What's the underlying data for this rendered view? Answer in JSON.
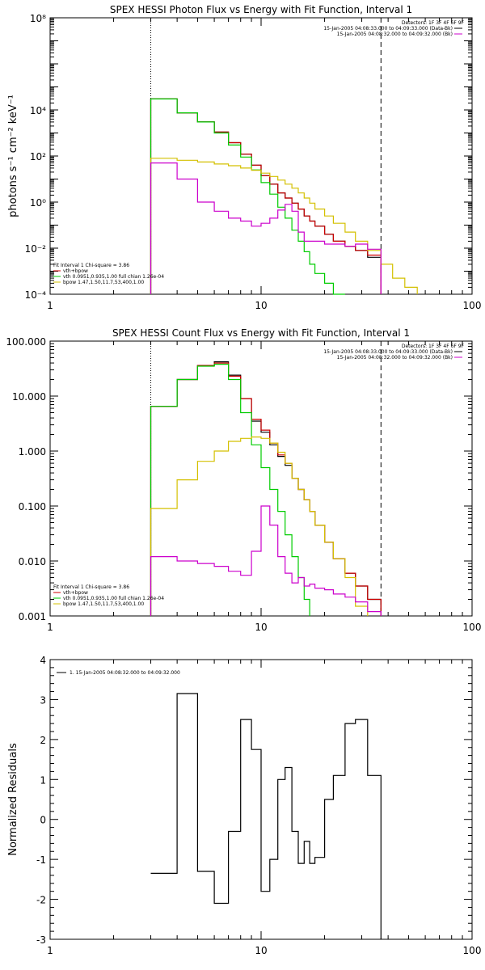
{
  "colors": {
    "data": "#000000",
    "total": "#cc0000",
    "thermal": "#00cc00",
    "powerlaw": "#d4c000",
    "background": "#cc00cc"
  },
  "chart_data": [
    {
      "type": "line",
      "title": "SPEX HESSI Photon Flux vs Energy with Fit Function, Interval 1",
      "xlabel": "",
      "ylabel": "photons s⁻¹ cm⁻² keV⁻¹",
      "xscale": "log",
      "yscale": "log",
      "xlim": [
        1,
        100
      ],
      "ylim": [
        0.0001,
        100000000
      ],
      "xticks": [
        {
          "v": 1,
          "label": "1"
        },
        {
          "v": 10,
          "label": "10"
        },
        {
          "v": 100,
          "label": "100"
        }
      ],
      "yticks": [
        {
          "v": 0.0001,
          "label": "10⁻⁴"
        },
        {
          "v": 0.01,
          "label": "10⁻²"
        },
        {
          "v": 1,
          "label": "10⁰"
        },
        {
          "v": 100,
          "label": "10²"
        },
        {
          "v": 10000,
          "label": "10⁴"
        },
        {
          "v": 100000000,
          "label": "10⁸"
        }
      ],
      "vlines": [
        {
          "x": 3,
          "style": "dotted"
        },
        {
          "x": 37,
          "style": "dashed"
        }
      ],
      "info_lines": [
        "Detectors: 1F 3F 4F 6F 9F",
        "15-Jan-2005 04:08:33.000 to 04:09:33.000 (Data-Bk)",
        "15-Jan-2005 04:08:32.000 to 04:09:32.000 (Bk)"
      ],
      "fit_lines": [
        "Fit Interval 1    Chi-square = 3.86",
        "vth+bpow",
        "vth 0.0951,0.935,1.00   full chian 1.26e-04",
        "bpow 1.47,1.50,11.7,53,400,1.00"
      ],
      "bin_edges": [
        3,
        4,
        5,
        6,
        7,
        8,
        9,
        10,
        11,
        12,
        13,
        14,
        15,
        16,
        17,
        18,
        20,
        22,
        25,
        28,
        32,
        37,
        42,
        48,
        55
      ],
      "series": [
        {
          "key": "data",
          "values": [
            30000,
            7500,
            3000,
            1100,
            380,
            120,
            40,
            14,
            6,
            2.5,
            1.5,
            0.9,
            0.5,
            0.25,
            0.15,
            0.09,
            0.04,
            0.02,
            0.012,
            0.008,
            0.004,
            null,
            null,
            null
          ]
        },
        {
          "key": "total",
          "values": [
            30000,
            7500,
            3000,
            1100,
            380,
            120,
            40,
            14,
            6,
            2.5,
            1.5,
            0.9,
            0.5,
            0.25,
            0.15,
            0.09,
            0.04,
            0.02,
            0.012,
            0.008,
            0.005,
            null,
            null,
            null
          ]
        },
        {
          "key": "thermal",
          "values": [
            30000,
            7500,
            3000,
            1000,
            300,
            90,
            25,
            7,
            2.2,
            0.6,
            0.2,
            0.06,
            0.02,
            0.007,
            0.002,
            0.0008,
            0.0003,
            0.0001,
            null,
            null,
            null,
            null,
            null,
            null
          ]
        },
        {
          "key": "powerlaw",
          "values": [
            80,
            65,
            55,
            45,
            38,
            30,
            24,
            18,
            13,
            9,
            6,
            4,
            2.5,
            1.5,
            0.9,
            0.5,
            0.25,
            0.12,
            0.05,
            0.02,
            0.008,
            0.002,
            0.0005,
            0.0002
          ]
        },
        {
          "key": "background",
          "values": [
            50,
            10,
            1,
            0.4,
            0.2,
            0.15,
            0.09,
            0.12,
            0.2,
            0.45,
            0.8,
            0.4,
            0.05,
            0.02,
            0.02,
            0.02,
            0.015,
            0.015,
            0.012,
            0.015,
            0.009,
            null,
            null,
            null
          ]
        }
      ]
    },
    {
      "type": "line",
      "title": "SPEX HESSI Count Flux vs Energy with Fit Function, Interval 1",
      "xlabel": "",
      "ylabel": "",
      "xscale": "log",
      "yscale": "log",
      "xlim": [
        1,
        100
      ],
      "ylim": [
        0.001,
        100
      ],
      "xticks": [
        {
          "v": 1,
          "label": "1"
        },
        {
          "v": 10,
          "label": "10"
        },
        {
          "v": 100,
          "label": "100"
        }
      ],
      "yticks": [
        {
          "v": 0.001,
          "label": "0.001"
        },
        {
          "v": 0.01,
          "label": "0.010"
        },
        {
          "v": 0.1,
          "label": "0.100"
        },
        {
          "v": 1,
          "label": "1.000"
        },
        {
          "v": 10,
          "label": "10.000"
        },
        {
          "v": 100,
          "label": "100.000"
        }
      ],
      "vlines": [
        {
          "x": 3,
          "style": "dotted"
        },
        {
          "x": 37,
          "style": "dashed"
        }
      ],
      "info_lines": [
        "Detectors: 1F 3F 4F 6F 9F",
        "15-Jan-2005 04:08:33.000 to 04:09:33.000 (Data-Bk)",
        "15-Jan-2005 04:08:32.000 to 04:09:32.000 (Bk)"
      ],
      "fit_lines": [
        "Fit Interval 1    Chi-square = 3.86",
        "vth+bpow",
        "vth 0.0951,0.935,1.00   full chian 1.26e-04",
        "bpow 1.47,1.50,11.7,53,400,1.00"
      ],
      "bin_edges": [
        3,
        4,
        5,
        6,
        7,
        8,
        9,
        10,
        11,
        12,
        13,
        14,
        15,
        16,
        17,
        18,
        20,
        22,
        25,
        28,
        32,
        37
      ],
      "series": [
        {
          "key": "data",
          "values": [
            6.5,
            20,
            36,
            42,
            24,
            9,
            3.5,
            2.2,
            1.3,
            0.8,
            0.55,
            0.32,
            0.2,
            0.13,
            0.08,
            0.045,
            0.022,
            0.011,
            0.006,
            0.0035,
            0.002
          ]
        },
        {
          "key": "total",
          "values": [
            6.5,
            20,
            36,
            40,
            23,
            9,
            3.8,
            2.4,
            1.4,
            0.85,
            0.6,
            0.32,
            0.2,
            0.13,
            0.08,
            0.045,
            0.022,
            0.011,
            0.006,
            0.0035,
            0.002
          ]
        },
        {
          "key": "thermal",
          "values": [
            6.5,
            20,
            35,
            38,
            20,
            5,
            1.3,
            0.5,
            0.2,
            0.08,
            0.03,
            0.012,
            0.005,
            0.002,
            null,
            null,
            null,
            null,
            null,
            null,
            null
          ]
        },
        {
          "key": "powerlaw",
          "values": [
            0.09,
            0.3,
            0.65,
            1.0,
            1.5,
            1.7,
            1.8,
            1.7,
            1.4,
            0.95,
            0.6,
            0.32,
            0.2,
            0.13,
            0.08,
            0.045,
            0.022,
            0.011,
            0.005,
            0.0015,
            null
          ]
        },
        {
          "key": "background",
          "values": [
            0.012,
            0.01,
            0.009,
            0.008,
            0.0065,
            0.0055,
            0.015,
            0.1,
            0.045,
            0.012,
            0.006,
            0.004,
            0.005,
            0.0035,
            0.0038,
            0.0032,
            0.003,
            0.0025,
            0.0022,
            0.0018,
            0.0012
          ]
        }
      ]
    },
    {
      "type": "line",
      "title": "",
      "xlabel": "",
      "ylabel": "Normalized Residuals",
      "xscale": "log",
      "yscale": "linear",
      "xlim": [
        1,
        100
      ],
      "ylim": [
        -3,
        4
      ],
      "xticks": [
        {
          "v": 1,
          "label": "1"
        },
        {
          "v": 10,
          "label": "10"
        },
        {
          "v": 100,
          "label": "100"
        }
      ],
      "yticks": [
        {
          "v": -3,
          "label": "-3"
        },
        {
          "v": -2,
          "label": "-2"
        },
        {
          "v": -1,
          "label": "-1"
        },
        {
          "v": 0,
          "label": "0"
        },
        {
          "v": 1,
          "label": "1"
        },
        {
          "v": 2,
          "label": "2"
        },
        {
          "v": 3,
          "label": "3"
        },
        {
          "v": 4,
          "label": "4"
        }
      ],
      "legend": "1. 15-Jan-2005 04:08:32.000 to 04:09:32.000",
      "bin_edges": [
        3,
        4,
        5,
        6,
        7,
        8,
        9,
        10,
        11,
        12,
        13,
        14,
        15,
        16,
        17,
        18,
        20,
        22,
        25,
        28,
        32,
        37
      ],
      "series": [
        {
          "key": "data",
          "values": [
            -1.35,
            3.15,
            -1.3,
            -2.1,
            -0.3,
            2.5,
            1.75,
            -1.8,
            -1.0,
            1.0,
            1.3,
            -0.3,
            -1.1,
            -0.55,
            -1.1,
            -0.95,
            0.5,
            1.1,
            2.4,
            2.5,
            1.1
          ]
        }
      ]
    }
  ]
}
